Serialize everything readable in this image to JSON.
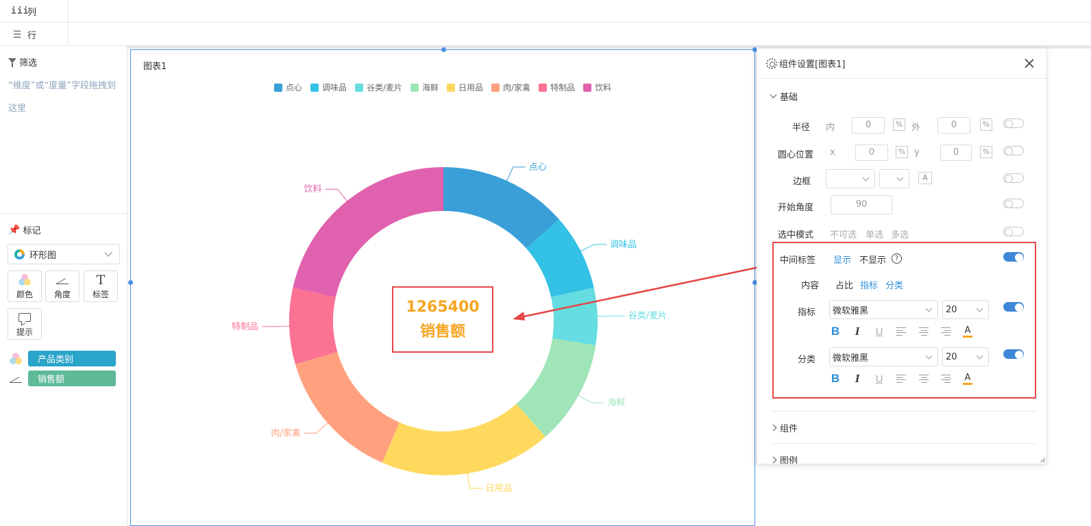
{
  "shelves": {
    "columns_label": "列",
    "rows_label": "行"
  },
  "left_panel": {
    "filter_title": "筛选",
    "filter_hint": "“维度”或“度量”字段拖拽到这里",
    "mark_title": "标记",
    "chart_type": "环形图",
    "mark_buttons": [
      {
        "label": "颜色",
        "icon": "color-dots-icon"
      },
      {
        "label": "角度",
        "icon": "angle-icon"
      },
      {
        "label": "标签",
        "icon": "text-t-icon"
      },
      {
        "label": "提示",
        "icon": "tooltip-icon"
      }
    ],
    "fields": [
      {
        "label": "产品类别",
        "icon": "color-dots-icon",
        "color": "#2aa4c9"
      },
      {
        "label": "销售额",
        "icon": "angle-icon",
        "color": "#5fba98"
      }
    ]
  },
  "chart_widget": {
    "title": "图表1",
    "center_value": "1265400",
    "center_category": "销售额"
  },
  "chart_data": {
    "type": "pie",
    "donut": true,
    "start_angle": 90,
    "categories": [
      "点心",
      "调味品",
      "谷类/麦片",
      "海鲜",
      "日用品",
      "肉/家禽",
      "特制品",
      "饮料"
    ],
    "values": [
      0.135,
      0.08,
      0.06,
      0.11,
      0.18,
      0.14,
      0.08,
      0.215
    ],
    "colors": [
      "#3a9fd8",
      "#33c1e5",
      "#66dde0",
      "#9fe5b8",
      "#fed95e",
      "#ffa07e",
      "#fb7293",
      "#e062ae"
    ],
    "legend_position": "top",
    "total": 1265400,
    "measure": "销售额"
  },
  "settings_panel": {
    "title": "组件设置[图表1]",
    "section_basic": "基础",
    "radius_label": "半径",
    "inner_label": "内",
    "outer_label": "外",
    "inner_value": "0",
    "outer_value": "0",
    "center_label": "圆心位置",
    "center_x_label": "x",
    "center_y_label": "y",
    "center_x_value": "0",
    "center_y_value": "0",
    "percent_symbol": "%",
    "border_label": "边框",
    "border_a": "A",
    "start_angle_label": "开始角度",
    "start_angle_value": "90",
    "select_mode_label": "选中模式",
    "select_mode_options": [
      "不可选",
      "单选",
      "多选"
    ],
    "middle_label_label": "中间标签",
    "middle_show": "显示",
    "middle_hide": "不显示",
    "help": "?",
    "content_label": "内容",
    "content_options": [
      "占比",
      "指标",
      "分类"
    ],
    "metric_label": "指标",
    "metric_font": "微软雅黑",
    "metric_size": "20",
    "category_label": "分类",
    "category_font": "微软雅黑",
    "category_size": "20",
    "fmt_bold": "B",
    "fmt_italic": "I",
    "fmt_underline": "U",
    "fmt_color": "A",
    "font_color": "#f5a623",
    "section_component": "组件",
    "section_legend": "图例"
  }
}
